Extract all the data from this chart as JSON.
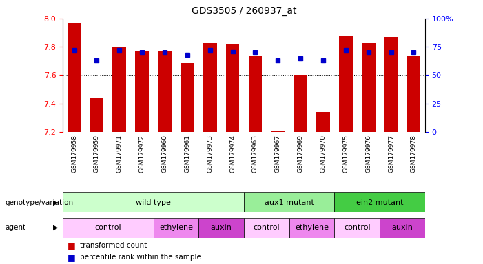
{
  "title": "GDS3505 / 260937_at",
  "samples": [
    "GSM179958",
    "GSM179959",
    "GSM179971",
    "GSM179972",
    "GSM179960",
    "GSM179961",
    "GSM179973",
    "GSM179974",
    "GSM179963",
    "GSM179967",
    "GSM179969",
    "GSM179970",
    "GSM179975",
    "GSM179976",
    "GSM179977",
    "GSM179978"
  ],
  "bar_values": [
    7.97,
    7.44,
    7.8,
    7.77,
    7.77,
    7.69,
    7.83,
    7.82,
    7.74,
    7.21,
    7.6,
    7.34,
    7.88,
    7.83,
    7.87,
    7.74
  ],
  "dot_values": [
    72,
    63,
    72,
    70,
    70,
    68,
    72,
    71,
    70,
    63,
    65,
    63,
    72,
    70,
    70,
    70
  ],
  "ymin": 7.2,
  "ymax": 8.0,
  "bar_color": "#cc0000",
  "dot_color": "#0000cc",
  "genotype_groups": [
    {
      "label": "wild type",
      "start": 0,
      "end": 8,
      "color": "#ccffcc"
    },
    {
      "label": "aux1 mutant",
      "start": 8,
      "end": 12,
      "color": "#99ee99"
    },
    {
      "label": "ein2 mutant",
      "start": 12,
      "end": 16,
      "color": "#44cc44"
    }
  ],
  "agent_groups": [
    {
      "label": "control",
      "start": 0,
      "end": 4,
      "color": "#ffccff"
    },
    {
      "label": "ethylene",
      "start": 4,
      "end": 6,
      "color": "#ee88ee"
    },
    {
      "label": "auxin",
      "start": 6,
      "end": 8,
      "color": "#cc44cc"
    },
    {
      "label": "control",
      "start": 8,
      "end": 10,
      "color": "#ffccff"
    },
    {
      "label": "ethylene",
      "start": 10,
      "end": 12,
      "color": "#ee88ee"
    },
    {
      "label": "control",
      "start": 12,
      "end": 14,
      "color": "#ffccff"
    },
    {
      "label": "auxin",
      "start": 14,
      "end": 16,
      "color": "#cc44cc"
    }
  ],
  "legend_items": [
    {
      "label": "transformed count",
      "color": "#cc0000"
    },
    {
      "label": "percentile rank within the sample",
      "color": "#0000cc"
    }
  ],
  "right_yticks": [
    0,
    25,
    50,
    75,
    100
  ],
  "right_yticklabels": [
    "0",
    "25",
    "50",
    "75",
    "100%"
  ],
  "left_yticks": [
    7.2,
    7.4,
    7.6,
    7.8,
    8.0
  ],
  "hlines": [
    7.4,
    7.6,
    7.8
  ],
  "background_color": "#ffffff",
  "row_label_genotype": "genotype/variation",
  "row_label_agent": "agent",
  "xtick_bg_color": "#d8d8d8"
}
